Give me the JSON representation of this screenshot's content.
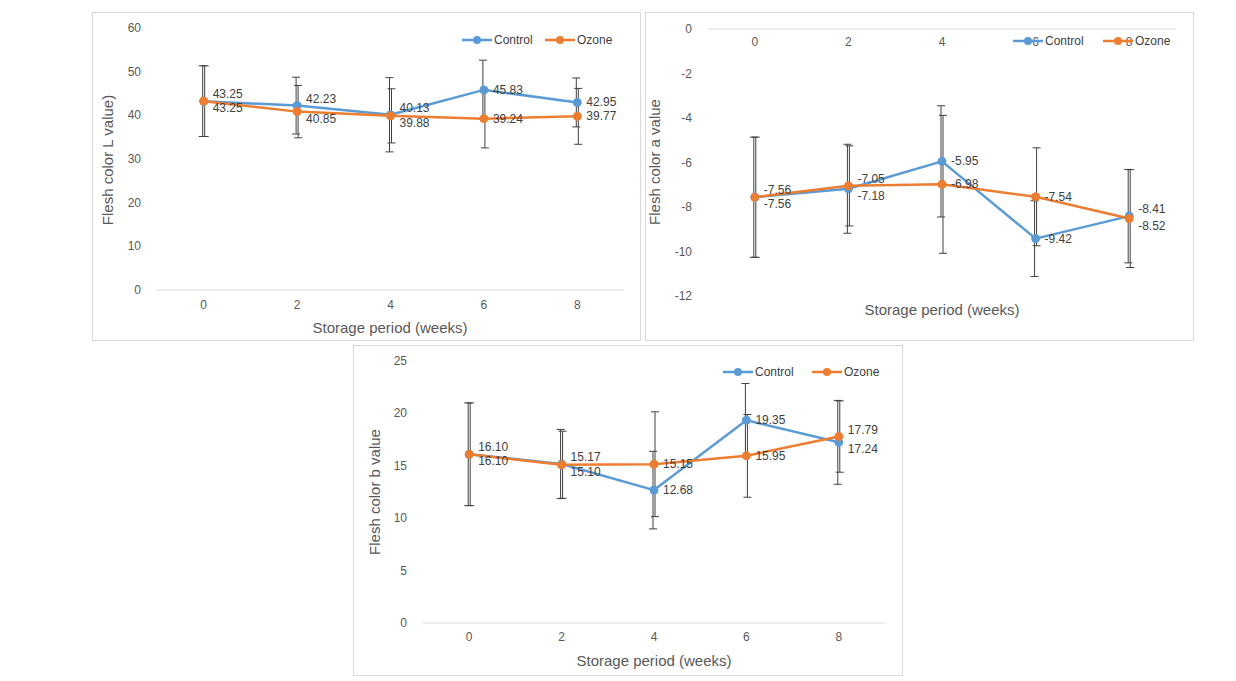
{
  "chart_data": [
    {
      "type": "line",
      "y_label": "Flesh color L value)",
      "x_label": "Storage period (weeks)",
      "categories": [
        "0",
        "2",
        "4",
        "6",
        "8"
      ],
      "ylim": [
        0,
        60
      ],
      "yticks": [
        0,
        10,
        20,
        30,
        40,
        50,
        60
      ],
      "legend": "top-right",
      "marker": "circle",
      "data_labels": true,
      "series": [
        {
          "name": "Control",
          "color": "#5b9bd5",
          "values": [
            43.25,
            42.23,
            40.13,
            45.83,
            42.95
          ],
          "errors": [
            8.1,
            6.5,
            8.5,
            6.8,
            5.6
          ]
        },
        {
          "name": "Ozone",
          "color": "#ed7d31",
          "values": [
            43.25,
            40.85,
            39.88,
            39.24,
            39.77
          ],
          "errors": [
            8.1,
            6.0,
            6.2,
            6.7,
            6.4
          ]
        }
      ]
    },
    {
      "type": "line",
      "y_label": "Flesh color a value",
      "x_label": "Storage period (weeks)",
      "categories": [
        "0",
        "2",
        "4",
        "6",
        "8"
      ],
      "ylim": [
        -12,
        0
      ],
      "yticks": [
        0,
        -2,
        -4,
        -6,
        -8,
        -10,
        -12
      ],
      "legend": "top-right",
      "marker": "circle",
      "data_labels": true,
      "series": [
        {
          "name": "Control",
          "color": "#5b9bd5",
          "values": [
            -7.56,
            -7.18,
            -5.95,
            -9.42,
            -8.41
          ],
          "errors": [
            2.7,
            2.0,
            2.5,
            1.7,
            2.1
          ]
        },
        {
          "name": "Ozone",
          "color": "#ed7d31",
          "values": [
            -7.56,
            -7.05,
            -6.98,
            -7.54,
            -8.52
          ],
          "errors": [
            2.7,
            1.8,
            3.1,
            2.2,
            2.2
          ]
        }
      ]
    },
    {
      "type": "line",
      "y_label": "Flesh color b value",
      "x_label": "Storage period (weeks)",
      "categories": [
        "0",
        "2",
        "4",
        "6",
        "8"
      ],
      "ylim": [
        0,
        25
      ],
      "yticks": [
        0,
        5,
        10,
        15,
        20,
        25
      ],
      "legend": "top-right",
      "marker": "circle",
      "data_labels": true,
      "series": [
        {
          "name": "Control",
          "color": "#5b9bd5",
          "values": [
            16.1,
            15.17,
            12.68,
            19.35,
            17.24
          ],
          "errors": [
            4.9,
            3.3,
            3.7,
            3.5,
            4.0
          ]
        },
        {
          "name": "Ozone",
          "color": "#ed7d31",
          "values": [
            16.1,
            15.1,
            15.15,
            15.95,
            17.79
          ],
          "errors": [
            4.9,
            3.2,
            5.0,
            3.95,
            3.4
          ]
        }
      ]
    }
  ]
}
